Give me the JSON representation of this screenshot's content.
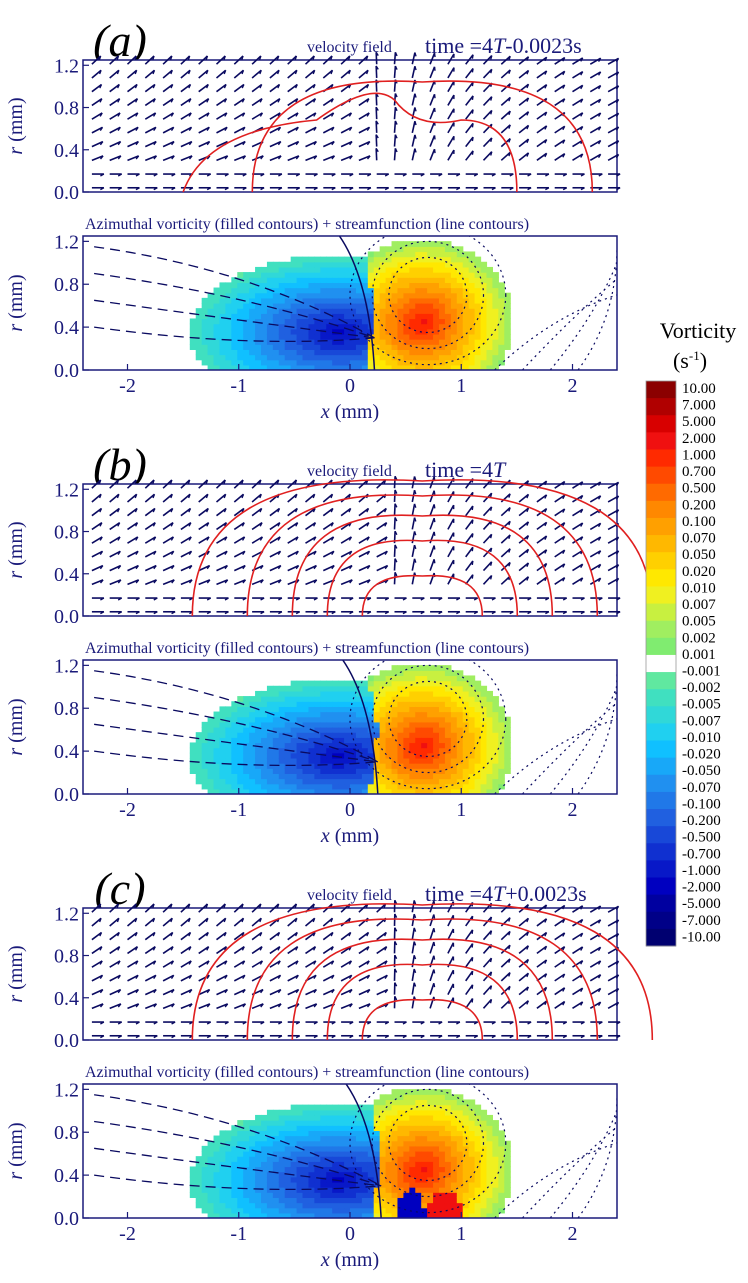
{
  "colors": {
    "axis": "#1a1a7a",
    "contour": "#e02020",
    "arrow": "#0a0a60",
    "zero_band": "#ffffff"
  },
  "chart_data": {
    "type": "heatmap",
    "colorbar": {
      "title": "Vorticity",
      "unit_base": "(s",
      "unit_exp": "-1",
      "unit_close": ")",
      "levels": [
        "10.00",
        "7.000",
        "5.000",
        "2.000",
        "1.000",
        "0.700",
        "0.500",
        "0.200",
        "0.100",
        "0.070",
        "0.050",
        "0.020",
        "0.010",
        "0.007",
        "0.005",
        "0.002",
        "0.001",
        "-0.001",
        "-0.002",
        "-0.005",
        "-0.007",
        "-0.010",
        "-0.020",
        "-0.050",
        "-0.070",
        "-0.100",
        "-0.200",
        "-0.500",
        "-0.700",
        "-1.000",
        "-2.000",
        "-5.000",
        "-7.000",
        "-10.00"
      ],
      "colors": [
        "#8b0000",
        "#b00000",
        "#d80000",
        "#f01010",
        "#ff2a00",
        "#ff4a00",
        "#ff6a00",
        "#ff8800",
        "#ffa000",
        "#ffb800",
        "#ffd000",
        "#ffe800",
        "#f0f020",
        "#c8f040",
        "#a0ee60",
        "#80ec70",
        "#ffffff",
        "#60e8a0",
        "#40e0c0",
        "#30d8d8",
        "#20d0f0",
        "#10c0ff",
        "#18a8f8",
        "#2090f0",
        "#2078e8",
        "#2060e0",
        "#1848d8",
        "#1030d0",
        "#0818c8",
        "#0000c0",
        "#0000a0",
        "#000088",
        "#000070"
      ]
    },
    "panels": [
      {
        "label": "(a)",
        "time_prefix": "time =4",
        "time_T": "T",
        "time_suffix": "-0.0023s",
        "velocity_title": "velocity field",
        "vorticity_title": "Azimuthal vorticity (filled contours) + streamfunction (line contours)",
        "xlabel_var": "x",
        "xlabel_unit": " (mm)",
        "ylabel_var": "r",
        "ylabel_unit": " (mm)",
        "xlim": [
          -2.4,
          2.4
        ],
        "ylim": [
          0.0,
          1.25
        ],
        "xticks": [
          "-2",
          "-1",
          "0",
          "1",
          "2"
        ],
        "yticks": [
          "0.0",
          "0.4",
          "0.8",
          "1.2"
        ],
        "split_x": 0.22,
        "neg_core": [
          -0.1,
          0.35
        ],
        "pos_core": [
          0.65,
          0.45
        ],
        "strong_core": false
      },
      {
        "label": "(b)",
        "time_prefix": "time =4",
        "time_T": "T",
        "time_suffix": "",
        "velocity_title": "velocity field",
        "vorticity_title": "Azimuthal vorticity (filled contours) + streamfunction (line contours)",
        "xlabel_var": "x",
        "xlabel_unit": " (mm)",
        "ylabel_var": "r",
        "ylabel_unit": " (mm)",
        "xlim": [
          -2.4,
          2.4
        ],
        "ylim": [
          0.0,
          1.25
        ],
        "xticks": [
          "-2",
          "-1",
          "0",
          "1",
          "2"
        ],
        "yticks": [
          "0.0",
          "0.4",
          "0.8",
          "1.2"
        ],
        "split_x": 0.25,
        "neg_core": [
          -0.1,
          0.35
        ],
        "pos_core": [
          0.65,
          0.45
        ],
        "strong_core": false
      },
      {
        "label": "(c)",
        "time_prefix": "time =4",
        "time_T": "T",
        "time_suffix": "+0.0023s",
        "velocity_title": "velocity field",
        "vorticity_title": "Azimuthal vorticity (filled contours) + streamfunction (line contours)",
        "xlabel_var": "x",
        "xlabel_unit": " (mm)",
        "ylabel_var": "r",
        "ylabel_unit": " (mm)",
        "xlim": [
          -2.4,
          2.4
        ],
        "ylim": [
          0.0,
          1.25
        ],
        "xticks": [
          "-2",
          "-1",
          "0",
          "1",
          "2"
        ],
        "yticks": [
          "0.0",
          "0.4",
          "0.8",
          "1.2"
        ],
        "split_x": 0.28,
        "neg_core": [
          -0.1,
          0.35
        ],
        "pos_core": [
          0.65,
          0.45
        ],
        "strong_core": true
      }
    ]
  }
}
